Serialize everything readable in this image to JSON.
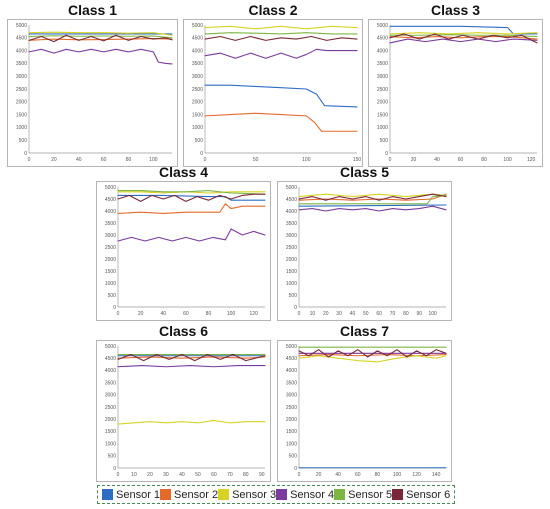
{
  "chart_data": [
    {
      "type": "line",
      "title": "Class 1",
      "xlim": [
        0,
        115
      ],
      "ylim": [
        0,
        5000
      ],
      "xticks": [
        0,
        20,
        40,
        60,
        80,
        100
      ],
      "yticks": [
        0,
        500,
        1000,
        1500,
        2000,
        2500,
        3000,
        3500,
        4000,
        4500,
        5000
      ],
      "series": [
        {
          "name": "Sensor 1",
          "x": [
            0,
            115
          ],
          "y": [
            4650,
            4650
          ]
        },
        {
          "name": "Sensor 2",
          "x": [
            0,
            20,
            40,
            60,
            80,
            100,
            115
          ],
          "y": [
            4400,
            4450,
            4420,
            4430,
            4450,
            4470,
            4450
          ]
        },
        {
          "name": "Sensor 3",
          "x": [
            0,
            20,
            40,
            60,
            80,
            100,
            115
          ],
          "y": [
            4700,
            4720,
            4700,
            4700,
            4680,
            4700,
            4600
          ]
        },
        {
          "name": "Sensor 4",
          "x": [
            0,
            10,
            20,
            30,
            40,
            50,
            60,
            70,
            80,
            90,
            100,
            104,
            110,
            115
          ],
          "y": [
            3950,
            4050,
            3900,
            4050,
            3950,
            4050,
            3950,
            4050,
            3950,
            4050,
            3950,
            3550,
            3500,
            3480
          ]
        },
        {
          "name": "Sensor 5",
          "x": [
            0,
            20,
            40,
            60,
            80,
            100,
            115
          ],
          "y": [
            4550,
            4580,
            4560,
            4570,
            4560,
            4570,
            4500
          ]
        },
        {
          "name": "Sensor 6",
          "x": [
            0,
            10,
            20,
            30,
            40,
            50,
            60,
            70,
            80,
            90,
            100,
            110,
            115
          ],
          "y": [
            4400,
            4550,
            4350,
            4600,
            4400,
            4550,
            4380,
            4600,
            4400,
            4550,
            4450,
            4500,
            4420
          ]
        }
      ]
    },
    {
      "type": "line",
      "title": "Class 2",
      "xlim": [
        0,
        150
      ],
      "ylim": [
        0,
        5000
      ],
      "xticks": [
        0,
        50,
        100,
        150
      ],
      "yticks": [
        0,
        500,
        1000,
        1500,
        2000,
        2500,
        3000,
        3500,
        4000,
        4500,
        5000
      ],
      "series": [
        {
          "name": "Sensor 1",
          "x": [
            0,
            25,
            50,
            75,
            100,
            110,
            118,
            150
          ],
          "y": [
            2650,
            2650,
            2600,
            2550,
            2500,
            2300,
            1850,
            1800
          ]
        },
        {
          "name": "Sensor 2",
          "x": [
            0,
            25,
            50,
            75,
            100,
            108,
            115,
            150
          ],
          "y": [
            1450,
            1500,
            1550,
            1500,
            1450,
            1200,
            850,
            850
          ]
        },
        {
          "name": "Sensor 3",
          "x": [
            0,
            25,
            50,
            75,
            100,
            125,
            150
          ],
          "y": [
            4900,
            4950,
            4850,
            4950,
            4850,
            4950,
            4900
          ]
        },
        {
          "name": "Sensor 4",
          "x": [
            0,
            15,
            30,
            45,
            60,
            75,
            90,
            100,
            110,
            120,
            135,
            150
          ],
          "y": [
            3800,
            3900,
            3700,
            3900,
            3700,
            3900,
            3700,
            3850,
            4050,
            4000,
            4000,
            4000
          ]
        },
        {
          "name": "Sensor 5",
          "x": [
            0,
            25,
            50,
            75,
            100,
            125,
            150
          ],
          "y": [
            4650,
            4700,
            4680,
            4650,
            4700,
            4650,
            4650
          ]
        },
        {
          "name": "Sensor 6",
          "x": [
            0,
            15,
            30,
            45,
            60,
            75,
            90,
            105,
            120,
            135,
            150
          ],
          "y": [
            4450,
            4550,
            4400,
            4550,
            4400,
            4500,
            4450,
            4550,
            4400,
            4500,
            4450
          ]
        }
      ]
    },
    {
      "type": "line",
      "title": "Class 3",
      "xlim": [
        0,
        125
      ],
      "ylim": [
        0,
        5000
      ],
      "xticks": [
        0,
        20,
        40,
        60,
        80,
        100,
        120
      ],
      "yticks": [
        0,
        500,
        1000,
        1500,
        2000,
        2500,
        3000,
        3500,
        4000,
        4500,
        5000
      ],
      "series": [
        {
          "name": "Sensor 1",
          "x": [
            0,
            60,
            100,
            105,
            125
          ],
          "y": [
            4950,
            4950,
            4900,
            4650,
            4650
          ]
        },
        {
          "name": "Sensor 2",
          "x": [
            0,
            20,
            40,
            60,
            80,
            100,
            125
          ],
          "y": [
            4550,
            4500,
            4550,
            4500,
            4550,
            4550,
            4450
          ]
        },
        {
          "name": "Sensor 3",
          "x": [
            0,
            25,
            50,
            75,
            100,
            125
          ],
          "y": [
            4650,
            4700,
            4650,
            4700,
            4650,
            4700
          ]
        },
        {
          "name": "Sensor 4",
          "x": [
            0,
            15,
            30,
            45,
            60,
            75,
            90,
            105,
            125
          ],
          "y": [
            4300,
            4450,
            4350,
            4450,
            4350,
            4450,
            4350,
            4450,
            4400
          ]
        },
        {
          "name": "Sensor 5",
          "x": [
            0,
            25,
            50,
            75,
            100,
            125
          ],
          "y": [
            4600,
            4600,
            4620,
            4600,
            4600,
            4550
          ]
        },
        {
          "name": "Sensor 6",
          "x": [
            0,
            12,
            25,
            38,
            50,
            62,
            75,
            88,
            100,
            112,
            125
          ],
          "y": [
            4500,
            4650,
            4450,
            4650,
            4450,
            4600,
            4450,
            4600,
            4500,
            4600,
            4300
          ]
        }
      ]
    },
    {
      "type": "line",
      "title": "Class 4",
      "xlim": [
        0,
        130
      ],
      "ylim": [
        0,
        5000
      ],
      "xticks": [
        0,
        20,
        40,
        60,
        80,
        100,
        120
      ],
      "yticks": [
        0,
        500,
        1000,
        1500,
        2000,
        2500,
        3000,
        3500,
        4000,
        4500,
        5000
      ],
      "series": [
        {
          "name": "Sensor 1",
          "x": [
            0,
            40,
            80,
            95,
            100,
            130
          ],
          "y": [
            4650,
            4650,
            4600,
            4600,
            4450,
            4450
          ]
        },
        {
          "name": "Sensor 2",
          "x": [
            0,
            20,
            40,
            60,
            80,
            90,
            95,
            100,
            110,
            130
          ],
          "y": [
            3900,
            3950,
            3900,
            3950,
            3950,
            3950,
            4300,
            4100,
            4200,
            4200
          ]
        },
        {
          "name": "Sensor 3",
          "x": [
            0,
            20,
            40,
            60,
            80,
            100,
            130
          ],
          "y": [
            4800,
            4800,
            4750,
            4800,
            4750,
            4800,
            4800
          ]
        },
        {
          "name": "Sensor 4",
          "x": [
            0,
            12,
            24,
            36,
            48,
            60,
            72,
            84,
            95,
            100,
            110,
            120,
            130
          ],
          "y": [
            2750,
            2900,
            2750,
            2900,
            2750,
            2900,
            2750,
            2900,
            2800,
            3250,
            3000,
            3150,
            3000
          ]
        },
        {
          "name": "Sensor 5",
          "x": [
            0,
            20,
            40,
            60,
            80,
            100,
            130
          ],
          "y": [
            4850,
            4850,
            4800,
            4800,
            4850,
            4750,
            4700
          ]
        },
        {
          "name": "Sensor 6",
          "x": [
            0,
            10,
            20,
            30,
            40,
            50,
            60,
            70,
            80,
            90,
            100,
            110,
            120,
            130
          ],
          "y": [
            4500,
            4650,
            4400,
            4650,
            4500,
            4650,
            4400,
            4600,
            4450,
            4650,
            4500,
            4650,
            4700,
            4700
          ]
        }
      ]
    },
    {
      "type": "line",
      "title": "Class 5",
      "xlim": [
        0,
        110
      ],
      "ylim": [
        0,
        5000
      ],
      "xticks": [
        0,
        10,
        20,
        30,
        40,
        50,
        60,
        70,
        80,
        90,
        100
      ],
      "yticks": [
        0,
        500,
        1000,
        1500,
        2000,
        2500,
        3000,
        3500,
        4000,
        4500,
        5000
      ],
      "series": [
        {
          "name": "Sensor 1",
          "x": [
            0,
            110
          ],
          "y": [
            4200,
            4250
          ]
        },
        {
          "name": "Sensor 2",
          "x": [
            0,
            20,
            40,
            60,
            80,
            100,
            110
          ],
          "y": [
            4450,
            4500,
            4450,
            4500,
            4450,
            4500,
            4700
          ]
        },
        {
          "name": "Sensor 3",
          "x": [
            0,
            20,
            40,
            60,
            80,
            100,
            110
          ],
          "y": [
            4600,
            4700,
            4600,
            4700,
            4600,
            4700,
            4650
          ]
        },
        {
          "name": "Sensor 4",
          "x": [
            0,
            10,
            20,
            30,
            40,
            50,
            60,
            70,
            80,
            90,
            100,
            110
          ],
          "y": [
            4050,
            4100,
            4000,
            4100,
            4050,
            4100,
            4000,
            4100,
            4050,
            4100,
            4200,
            4050
          ]
        },
        {
          "name": "Sensor 5",
          "x": [
            0,
            20,
            40,
            60,
            80,
            96,
            100,
            110
          ],
          "y": [
            4300,
            4300,
            4300,
            4300,
            4300,
            4300,
            4600,
            4650
          ]
        },
        {
          "name": "Sensor 6",
          "x": [
            0,
            10,
            20,
            30,
            40,
            50,
            60,
            70,
            80,
            90,
            100,
            110
          ],
          "y": [
            4500,
            4600,
            4450,
            4600,
            4500,
            4600,
            4450,
            4600,
            4500,
            4600,
            4700,
            4600
          ]
        }
      ]
    },
    {
      "type": "line",
      "title": "Class 6",
      "xlim": [
        0,
        92
      ],
      "ylim": [
        0,
        5000
      ],
      "xticks": [
        0,
        10,
        20,
        30,
        40,
        50,
        60,
        70,
        80,
        90
      ],
      "yticks": [
        0,
        500,
        1000,
        1500,
        2000,
        2500,
        3000,
        3500,
        4000,
        4500,
        5000
      ],
      "series": [
        {
          "name": "Sensor 1",
          "x": [
            0,
            92
          ],
          "y": [
            4600,
            4600
          ]
        },
        {
          "name": "Sensor 2",
          "x": [
            0,
            20,
            40,
            60,
            80,
            92
          ],
          "y": [
            4500,
            4550,
            4500,
            4550,
            4500,
            4550
          ]
        },
        {
          "name": "Sensor 3",
          "x": [
            0,
            10,
            20,
            30,
            40,
            50,
            60,
            70,
            80,
            92
          ],
          "y": [
            1800,
            1850,
            1900,
            1850,
            1900,
            1850,
            1950,
            1850,
            1900,
            1900
          ]
        },
        {
          "name": "Sensor 4",
          "x": [
            0,
            15,
            30,
            45,
            60,
            75,
            92
          ],
          "y": [
            4150,
            4200,
            4150,
            4200,
            4150,
            4200,
            4200
          ]
        },
        {
          "name": "Sensor 5",
          "x": [
            0,
            20,
            40,
            60,
            80,
            92
          ],
          "y": [
            4650,
            4650,
            4650,
            4650,
            4650,
            4650
          ]
        },
        {
          "name": "Sensor 6",
          "x": [
            0,
            8,
            16,
            24,
            32,
            40,
            48,
            56,
            64,
            72,
            80,
            92
          ],
          "y": [
            4450,
            4650,
            4400,
            4650,
            4450,
            4650,
            4400,
            4650,
            4450,
            4650,
            4400,
            4600
          ]
        }
      ]
    },
    {
      "type": "line",
      "title": "Class 7",
      "xlim": [
        0,
        150
      ],
      "ylim": [
        0,
        5000
      ],
      "xticks": [
        0,
        20,
        40,
        60,
        80,
        100,
        120,
        140
      ],
      "yticks": [
        0,
        500,
        1000,
        1500,
        2000,
        2500,
        3000,
        3500,
        4000,
        4500,
        5000
      ],
      "series": [
        {
          "name": "Sensor 1",
          "x": [
            0,
            150
          ],
          "y": [
            10,
            10
          ]
        },
        {
          "name": "Sensor 2",
          "x": [
            0,
            30,
            60,
            90,
            120,
            150
          ],
          "y": [
            4600,
            4650,
            4600,
            4650,
            4600,
            4650
          ]
        },
        {
          "name": "Sensor 3",
          "x": [
            0,
            20,
            40,
            60,
            80,
            100,
            120,
            140,
            150
          ],
          "y": [
            4500,
            4600,
            4500,
            4400,
            4350,
            4500,
            4600,
            4500,
            4600
          ]
        },
        {
          "name": "Sensor 4",
          "x": [
            0,
            150
          ],
          "y": [
            4700,
            4700
          ]
        },
        {
          "name": "Sensor 5",
          "x": [
            0,
            40,
            80,
            120,
            150
          ],
          "y": [
            4950,
            4950,
            4950,
            4950,
            4950
          ]
        },
        {
          "name": "Sensor 6",
          "x": [
            0,
            10,
            20,
            30,
            40,
            50,
            60,
            70,
            80,
            90,
            100,
            110,
            120,
            130,
            140,
            150
          ],
          "y": [
            4800,
            4600,
            4850,
            4550,
            4800,
            4600,
            4850,
            4550,
            4800,
            4600,
            4850,
            4550,
            4800,
            4600,
            4850,
            4700
          ]
        }
      ]
    }
  ],
  "legend": {
    "items": [
      {
        "label": "Sensor 1",
        "color": "#2e6dc4"
      },
      {
        "label": "Sensor 2",
        "color": "#e46a2b"
      },
      {
        "label": "Sensor 3",
        "color": "#d6d324"
      },
      {
        "label": "Sensor 4",
        "color": "#7a3a9e"
      },
      {
        "label": "Sensor 5",
        "color": "#7db542"
      },
      {
        "label": "Sensor 6",
        "color": "#7a2838"
      }
    ]
  },
  "colors": {
    "Sensor 1": "#2e6dc4",
    "Sensor 2": "#e46a2b",
    "Sensor 3": "#d6d324",
    "Sensor 4": "#7a3a9e",
    "Sensor 5": "#7db542",
    "Sensor 6": "#7a2838"
  }
}
